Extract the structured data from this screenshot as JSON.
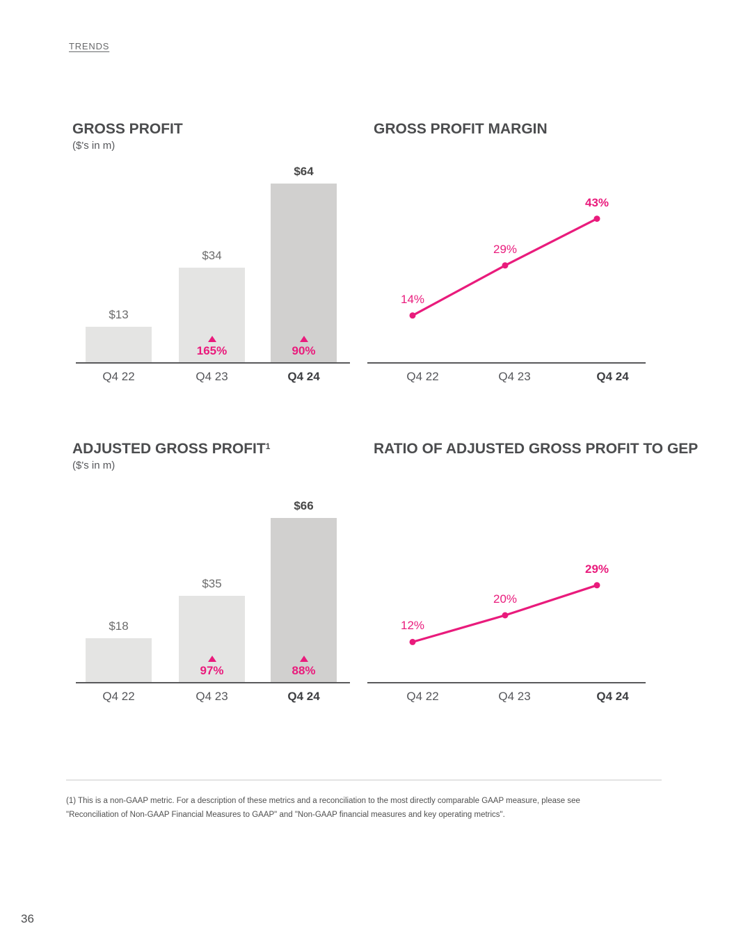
{
  "page": {
    "section_label": "TRENDS",
    "page_number": "36",
    "footnote": {
      "line1": "(1) This is a non-GAAP metric. For a description of these metrics and a reconciliation to the most directly comparable GAAP measure, please see",
      "line2": "\"Reconciliation of Non-GAAP Financial Measures to GAAP\" and \"Non-GAAP financial measures and key operating metrics\"."
    }
  },
  "colors": {
    "accent_pink": "#E91B7C",
    "bar_fill_light": "#E4E4E3",
    "bar_fill_dark": "#D1D0CF",
    "axis_gray": "#58585A"
  },
  "chart_data": [
    {
      "type": "bar",
      "title": "GROSS PROFIT",
      "subtitle": "($'s in m)",
      "categories": [
        "Q4 22",
        "Q4 23",
        "Q4 24"
      ],
      "values": [
        13,
        34,
        64
      ],
      "value_labels": [
        "$13",
        "$34",
        "$64"
      ],
      "growth_labels": [
        "",
        "165%",
        "90%"
      ],
      "emphasized_category_index": 2,
      "xlabel": "",
      "ylabel": ""
    },
    {
      "type": "line",
      "title": "GROSS PROFIT MARGIN",
      "categories": [
        "Q4 22",
        "Q4 23",
        "Q4 24"
      ],
      "values": [
        14,
        29,
        43
      ],
      "value_labels": [
        "14%",
        "29%",
        "43%"
      ],
      "emphasized_category_index": 2,
      "ylim": [
        0,
        57
      ],
      "grid": false,
      "legend": false
    },
    {
      "type": "bar",
      "title": "ADJUSTED GROSS PROFIT",
      "title_superscript": "1",
      "subtitle": "($'s in m)",
      "categories": [
        "Q4 22",
        "Q4 23",
        "Q4 24"
      ],
      "values": [
        18,
        35,
        66
      ],
      "value_labels": [
        "$18",
        "$35",
        "$66"
      ],
      "growth_labels": [
        "",
        "97%",
        "88%"
      ],
      "emphasized_category_index": 2,
      "xlabel": "",
      "ylabel": ""
    },
    {
      "type": "line",
      "title": "RATIO OF ADJUSTED GROSS PROFIT TO GEP",
      "categories": [
        "Q4 22",
        "Q4 23",
        "Q4 24"
      ],
      "values": [
        12,
        20,
        29
      ],
      "value_labels": [
        "12%",
        "20%",
        "29%"
      ],
      "emphasized_category_index": 2,
      "ylim": [
        0,
        57
      ],
      "grid": false,
      "legend": false
    }
  ]
}
